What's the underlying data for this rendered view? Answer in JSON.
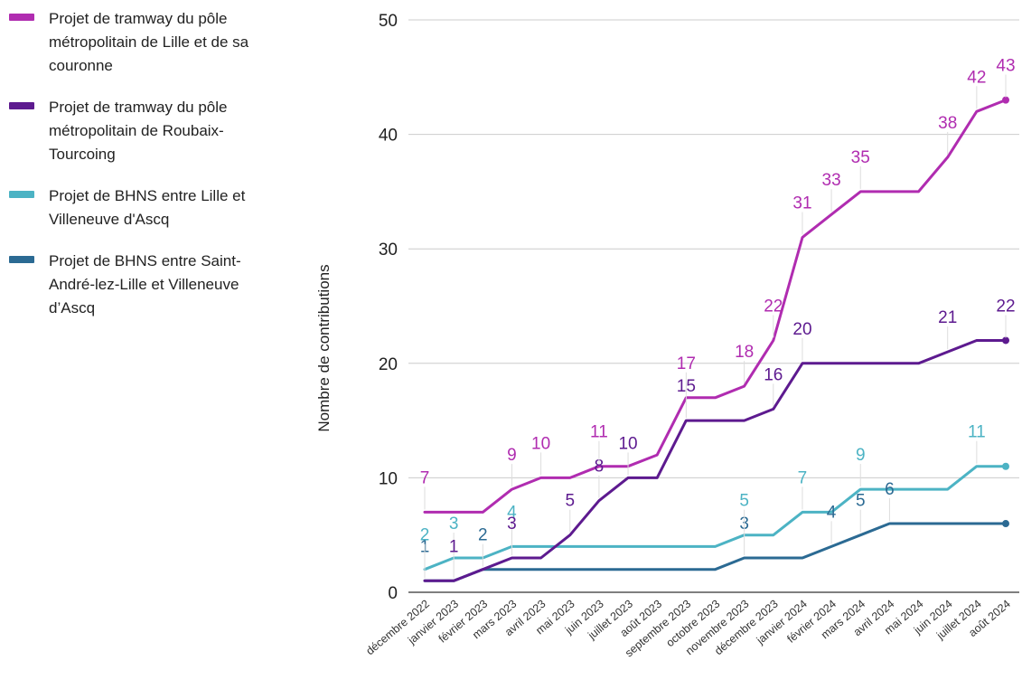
{
  "chart_data": {
    "type": "line",
    "ylabel": "Nombre de contributions",
    "ylim": [
      0,
      50
    ],
    "yticks": [
      0,
      10,
      20,
      30,
      40,
      50
    ],
    "grid": true,
    "legend_position": "left",
    "categories": [
      "décembre 2022",
      "janvier 2023",
      "février 2023",
      "mars 2023",
      "avril 2023",
      "mai 2023",
      "juin 2023",
      "juillet 2023",
      "août 2023",
      "septembre 2023",
      "octobre 2023",
      "novembre 2023",
      "décembre 2023",
      "janvier 2024",
      "février 2024",
      "mars 2024",
      "avril 2024",
      "mai 2024",
      "juin 2024",
      "juillet 2024",
      "août 2024"
    ],
    "series": [
      {
        "name": "Projet de tramway du pôle métropolitain de Lille et de sa couronne",
        "color": "#b02cb0",
        "values": [
          7,
          7,
          7,
          9,
          10,
          10,
          11,
          11,
          12,
          17,
          17,
          18,
          22,
          31,
          33,
          35,
          35,
          35,
          38,
          42,
          43
        ],
        "labels": [
          "7",
          "",
          "",
          "9",
          "10",
          "",
          "11",
          "",
          "",
          "17",
          "",
          "18",
          "22",
          "31",
          "33",
          "35",
          "",
          "",
          "38",
          "42",
          "43"
        ]
      },
      {
        "name": "Projet de tramway du pôle métropolitain de Roubaix-Tourcoing",
        "color": "#5d1a8f",
        "values": [
          1,
          1,
          2,
          3,
          3,
          5,
          8,
          10,
          10,
          15,
          15,
          15,
          16,
          20,
          20,
          20,
          20,
          20,
          21,
          22,
          22
        ],
        "labels": [
          "",
          "1",
          "",
          "3",
          "",
          "5",
          "8",
          "10",
          "",
          "15",
          "",
          "",
          "16",
          "20",
          "",
          "",
          "",
          "",
          "21",
          "",
          "22"
        ]
      },
      {
        "name": "Projet de BHNS entre Lille et Villeneuve d'Ascq",
        "color": "#4cb3c4",
        "values": [
          2,
          3,
          3,
          4,
          4,
          4,
          4,
          4,
          4,
          4,
          4,
          5,
          5,
          7,
          7,
          9,
          9,
          9,
          9,
          11,
          11
        ],
        "labels": [
          "2",
          "3",
          "",
          "4",
          "",
          "",
          "",
          "",
          "",
          "",
          "",
          "5",
          "",
          "7",
          "",
          "9",
          "",
          "",
          "",
          "11",
          ""
        ]
      },
      {
        "name": "Projet de BHNS entre Saint-André-lez-Lille et Villeneuve d’Ascq",
        "color": "#2b6a93",
        "values": [
          1,
          1,
          2,
          2,
          2,
          2,
          2,
          2,
          2,
          2,
          2,
          3,
          3,
          3,
          4,
          5,
          6,
          6,
          6,
          6,
          6
        ],
        "labels": [
          "1",
          "",
          "2",
          "",
          "",
          "",
          "",
          "",
          "",
          "",
          "",
          "3",
          "",
          "",
          "4",
          "5",
          "6",
          "",
          "",
          "",
          ""
        ]
      }
    ]
  }
}
